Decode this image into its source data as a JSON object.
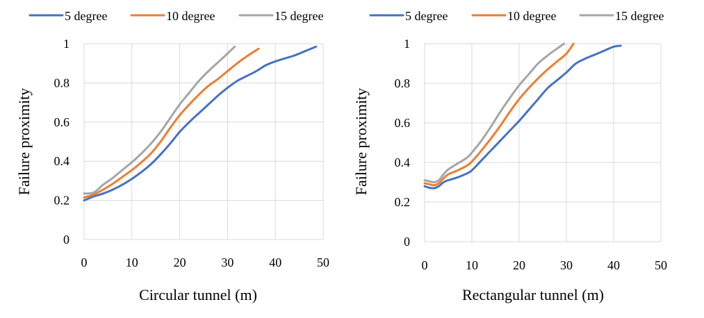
{
  "chart_data": [
    {
      "type": "line",
      "title": "",
      "xlabel": "Circular tunnel (m)",
      "ylabel": "Failure proximity",
      "xlim": [
        0,
        50
      ],
      "ylim": [
        0,
        1
      ],
      "xticks": [
        0,
        10,
        20,
        30,
        40,
        50
      ],
      "yticks": [
        0,
        0.2,
        0.4,
        0.6,
        0.8,
        1
      ],
      "xtick_labels": [
        "0",
        "10",
        "20",
        "30",
        "40",
        "50"
      ],
      "ytick_labels": [
        "0",
        "0.2",
        "0.4",
        "0.6",
        "0.8",
        "1"
      ],
      "grid": "vertical and horizontal",
      "legend_position": "top",
      "series": [
        {
          "name": "5 degree",
          "color": "#4472C4",
          "x": [
            0,
            2,
            4,
            6,
            8,
            10,
            12,
            14,
            16,
            18,
            20,
            22,
            24,
            26,
            28,
            30,
            32,
            34,
            36,
            38,
            40,
            42,
            44,
            46,
            48.5
          ],
          "y": [
            0.2,
            0.22,
            0.235,
            0.255,
            0.28,
            0.31,
            0.345,
            0.385,
            0.435,
            0.49,
            0.55,
            0.6,
            0.645,
            0.69,
            0.735,
            0.775,
            0.81,
            0.835,
            0.86,
            0.89,
            0.91,
            0.925,
            0.94,
            0.96,
            0.985
          ]
        },
        {
          "name": "10 degree",
          "color": "#ED7D31",
          "x": [
            0,
            2,
            4,
            6,
            8,
            10,
            12,
            14,
            16,
            18,
            20,
            22,
            24,
            26,
            28,
            30,
            32,
            34,
            36.5
          ],
          "y": [
            0.215,
            0.23,
            0.255,
            0.285,
            0.32,
            0.355,
            0.395,
            0.44,
            0.5,
            0.57,
            0.635,
            0.69,
            0.74,
            0.785,
            0.82,
            0.86,
            0.9,
            0.935,
            0.975
          ]
        },
        {
          "name": "15 degree",
          "color": "#A5A5A5",
          "x": [
            0,
            2,
            4,
            6,
            8,
            10,
            12,
            14,
            16,
            18,
            20,
            22,
            24,
            26,
            28,
            30,
            31.5
          ],
          "y": [
            0.235,
            0.24,
            0.28,
            0.315,
            0.355,
            0.395,
            0.44,
            0.49,
            0.55,
            0.62,
            0.69,
            0.75,
            0.81,
            0.86,
            0.905,
            0.95,
            0.985
          ]
        }
      ]
    },
    {
      "type": "line",
      "title": "",
      "xlabel": "Rectangular tunnel (m)",
      "ylabel": "Failure proximity",
      "xlim": [
        0,
        50
      ],
      "ylim": [
        0,
        1
      ],
      "xticks": [
        0,
        10,
        20,
        30,
        40,
        50
      ],
      "yticks": [
        0,
        0.2,
        0.4,
        0.6,
        0.8,
        1
      ],
      "xtick_labels": [
        "0",
        "10",
        "20",
        "30",
        "40",
        "50"
      ],
      "ytick_labels": [
        "0",
        "0.2",
        "0.4",
        "0.6",
        "0.8",
        "1"
      ],
      "grid": "vertical and horizontal",
      "legend_position": "top",
      "series": [
        {
          "name": "5 degree",
          "color": "#4472C4",
          "x": [
            0,
            1,
            2,
            3,
            4,
            5,
            7,
            9,
            10,
            12,
            14,
            16,
            18,
            20,
            22,
            24,
            26,
            28,
            30,
            32,
            34,
            36,
            38,
            40,
            41.5
          ],
          "y": [
            0.28,
            0.272,
            0.27,
            0.28,
            0.3,
            0.31,
            0.325,
            0.345,
            0.36,
            0.41,
            0.46,
            0.51,
            0.56,
            0.61,
            0.665,
            0.72,
            0.775,
            0.815,
            0.855,
            0.9,
            0.925,
            0.945,
            0.965,
            0.985,
            0.99
          ]
        },
        {
          "name": "10 degree",
          "color": "#ED7D31",
          "x": [
            0,
            1,
            2,
            3,
            4,
            5,
            7,
            9,
            10,
            12,
            14,
            16,
            18,
            20,
            22,
            24,
            26,
            28,
            30,
            31.5
          ],
          "y": [
            0.295,
            0.29,
            0.285,
            0.295,
            0.32,
            0.34,
            0.36,
            0.385,
            0.405,
            0.46,
            0.52,
            0.585,
            0.655,
            0.72,
            0.775,
            0.825,
            0.87,
            0.91,
            0.95,
            1.0
          ]
        },
        {
          "name": "15 degree",
          "color": "#A5A5A5",
          "x": [
            0,
            1,
            2,
            3,
            4,
            5,
            7,
            9,
            10,
            12,
            14,
            16,
            18,
            20,
            22,
            24,
            26,
            28,
            29.5
          ],
          "y": [
            0.31,
            0.305,
            0.3,
            0.31,
            0.34,
            0.365,
            0.395,
            0.425,
            0.45,
            0.51,
            0.58,
            0.655,
            0.725,
            0.79,
            0.845,
            0.9,
            0.94,
            0.975,
            1.0
          ]
        }
      ]
    }
  ]
}
